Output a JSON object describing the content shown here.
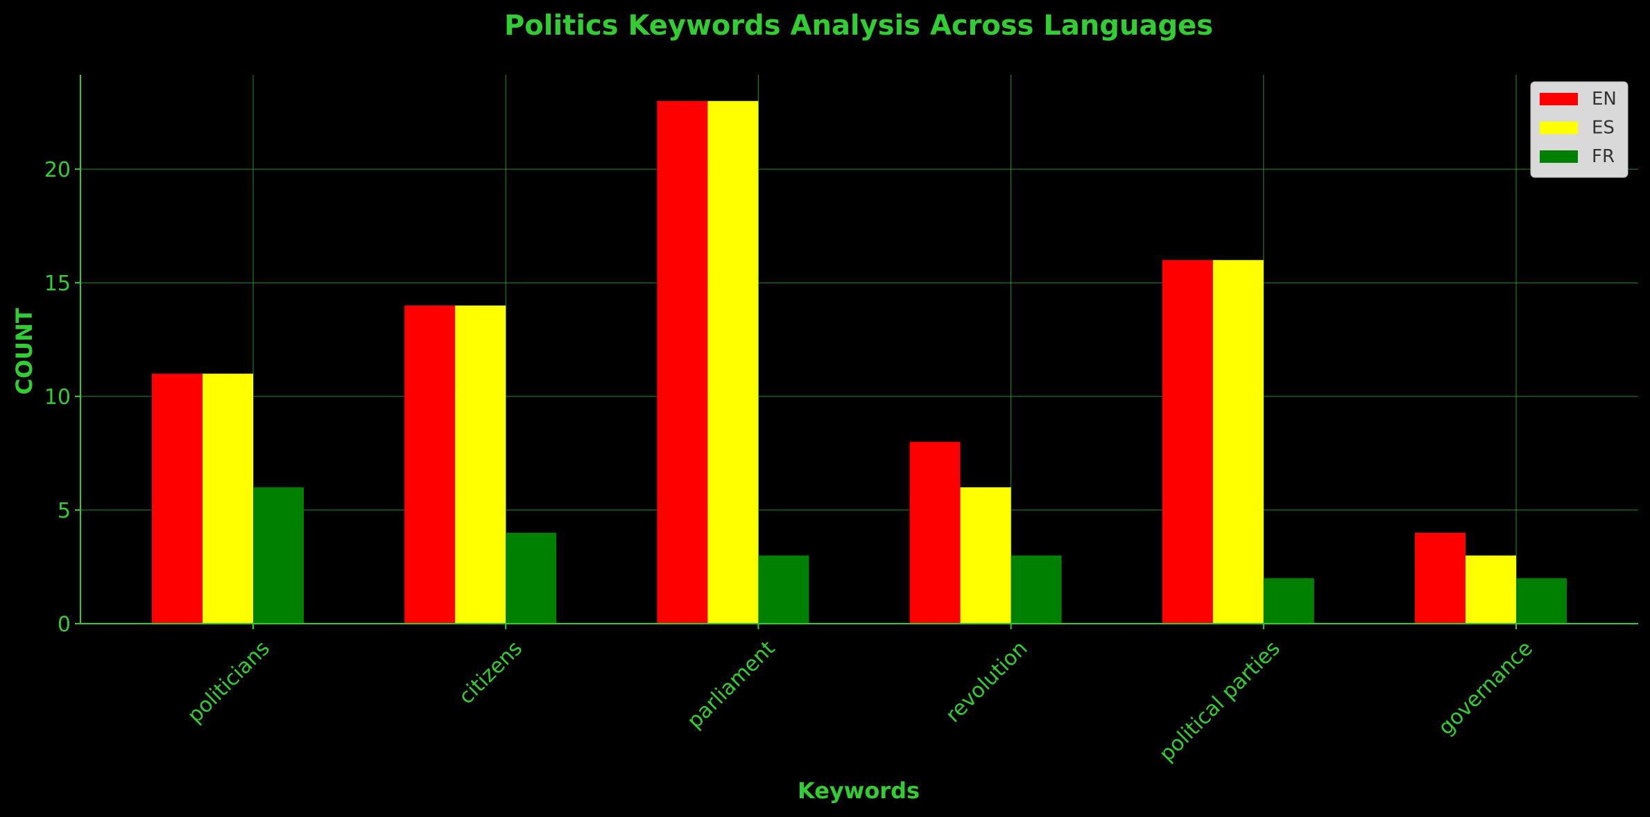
{
  "chart_data": {
    "type": "bar",
    "title": "Politics Keywords Analysis Across Languages",
    "xlabel": "Keywords",
    "ylabel": "COUNT",
    "categories": [
      "politicians",
      "citizens",
      "parliament",
      "revolution",
      "political parties",
      "governance"
    ],
    "series": [
      {
        "name": "EN",
        "color": "#ff0000",
        "values": [
          11,
          14,
          23,
          8,
          16,
          4
        ]
      },
      {
        "name": "ES",
        "color": "#ffff00",
        "values": [
          11,
          14,
          23,
          6,
          16,
          3
        ]
      },
      {
        "name": "FR",
        "color": "#008000",
        "values": [
          6,
          4,
          3,
          3,
          2,
          2
        ]
      }
    ],
    "ylim": [
      0,
      24.15
    ],
    "yticks": [
      0,
      5,
      10,
      15,
      20
    ],
    "grid": true,
    "legend_position": "top-right",
    "xtick_rotation": 45
  },
  "colors": {
    "background": "#000000",
    "text": "#32cd32",
    "axis": "#32cd32",
    "grid": "#32cd32",
    "legend_bg": "#d9d9d9",
    "legend_text": "#333333"
  }
}
